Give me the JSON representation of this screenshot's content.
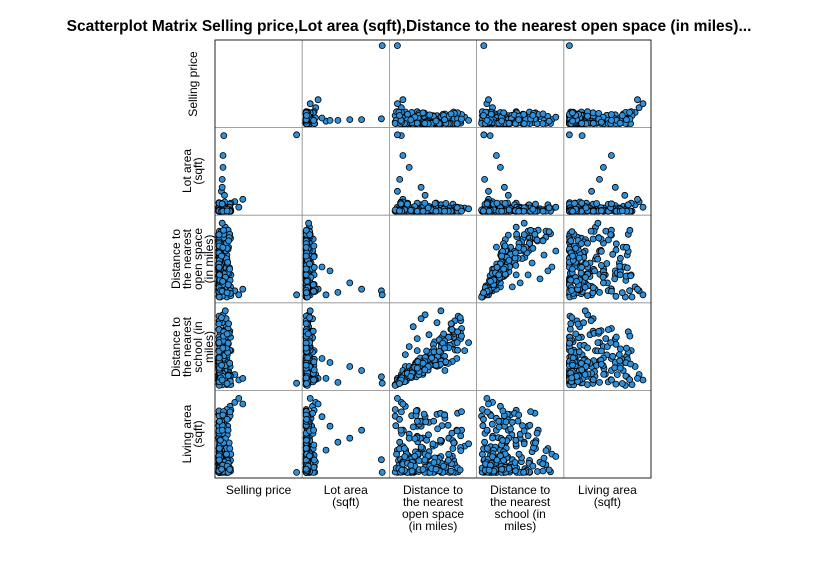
{
  "title": "Scatterplot Matrix Selling price,Lot area (sqft),Distance to the nearest open space (in miles)...",
  "colors": {
    "point_fill": "#2f8fd8",
    "point_stroke": "#000000",
    "axis_line": "#000000",
    "cell_border": "#999999"
  },
  "chart_data": {
    "type": "scatter",
    "subtype": "scatterplot-matrix",
    "variables": [
      {
        "name": "Selling price",
        "label_lines": [
          "Selling price"
        ]
      },
      {
        "name": "Lot area (sqft)",
        "label_lines": [
          "Lot area",
          "(sqft)"
        ]
      },
      {
        "name": "Distance to the nearest open space (in miles)",
        "label_lines": [
          "Distance to",
          "the nearest",
          "open space",
          "(in miles)"
        ]
      },
      {
        "name": "Distance to the nearest school (in miles)",
        "label_lines": [
          "Distance to",
          "the nearest",
          "school (in",
          "miles)"
        ]
      },
      {
        "name": "Living area (sqft)",
        "label_lines": [
          "Living area",
          "(sqft)"
        ]
      }
    ],
    "normalized_ranges_note": "",
    "points": [
      [
        0.02,
        0.05
      ],
      [
        0.04,
        0.08
      ],
      [
        0.05,
        0.03
      ],
      [
        0.06,
        0.12
      ],
      [
        0.03,
        0.15
      ],
      [
        0.07,
        0.06
      ],
      [
        0.08,
        0.1
      ],
      [
        0.05,
        0.18
      ],
      [
        0.04,
        0.22
      ],
      [
        0.06,
        0.25
      ],
      [
        0.03,
        0.3
      ],
      [
        0.05,
        0.35
      ],
      [
        0.07,
        0.28
      ],
      [
        0.08,
        0.4
      ],
      [
        0.04,
        0.45
      ],
      [
        0.06,
        0.5
      ],
      [
        0.05,
        0.55
      ],
      [
        0.03,
        0.6
      ],
      [
        0.07,
        0.65
      ],
      [
        0.06,
        0.7
      ],
      [
        0.04,
        0.75
      ],
      [
        0.05,
        0.8
      ],
      [
        0.03,
        0.85
      ],
      [
        0.06,
        0.9
      ],
      [
        0.05,
        0.95
      ],
      [
        0.04,
        0.98
      ],
      [
        0.09,
        0.15
      ],
      [
        0.1,
        0.2
      ],
      [
        0.12,
        0.08
      ],
      [
        0.11,
        0.3
      ],
      [
        0.13,
        0.12
      ],
      [
        0.15,
        0.05
      ],
      [
        0.14,
        0.18
      ],
      [
        0.16,
        0.1
      ],
      [
        0.18,
        0.06
      ],
      [
        0.2,
        0.04
      ],
      [
        0.22,
        0.08
      ],
      [
        0.25,
        0.03
      ],
      [
        0.28,
        0.05
      ],
      [
        0.3,
        0.02
      ],
      [
        0.09,
        0.45
      ],
      [
        0.1,
        0.55
      ],
      [
        0.08,
        0.62
      ],
      [
        0.09,
        0.72
      ],
      [
        0.07,
        0.82
      ],
      [
        0.11,
        0.4
      ],
      [
        0.12,
        0.35
      ],
      [
        0.1,
        0.65
      ],
      [
        0.08,
        0.88
      ],
      [
        0.09,
        0.92
      ],
      [
        0.35,
        0.04
      ],
      [
        0.4,
        0.03
      ],
      [
        0.45,
        0.05
      ],
      [
        0.5,
        0.02
      ],
      [
        0.55,
        0.04
      ],
      [
        0.6,
        0.03
      ],
      [
        0.65,
        0.05
      ],
      [
        0.7,
        0.02
      ],
      [
        0.75,
        0.03
      ],
      [
        0.8,
        0.02
      ],
      [
        0.06,
        0.42
      ],
      [
        0.07,
        0.48
      ],
      [
        0.05,
        0.52
      ],
      [
        0.06,
        0.58
      ],
      [
        0.04,
        0.62
      ],
      [
        0.05,
        0.68
      ],
      [
        0.07,
        0.72
      ],
      [
        0.03,
        0.78
      ],
      [
        0.06,
        0.84
      ],
      [
        0.04,
        0.88
      ],
      [
        0.98,
        0.96
      ]
    ],
    "pairs_seed": [
      [
        0.05,
        0.06,
        0.1,
        0.12,
        0.1
      ],
      [
        0.04,
        0.02,
        0.2,
        0.15,
        0.22
      ],
      [
        0.06,
        0.03,
        0.35,
        0.25,
        0.3
      ],
      [
        0.08,
        0.04,
        0.15,
        0.4,
        0.18
      ],
      [
        0.1,
        0.05,
        0.5,
        0.3,
        0.35
      ],
      [
        0.03,
        0.02,
        0.6,
        0.55,
        0.4
      ],
      [
        0.07,
        0.06,
        0.45,
        0.65,
        0.28
      ],
      [
        0.05,
        0.04,
        0.7,
        0.5,
        0.45
      ],
      [
        0.09,
        0.03,
        0.25,
        0.75,
        0.15
      ],
      [
        0.06,
        0.05,
        0.8,
        0.35,
        0.55
      ],
      [
        0.04,
        0.02,
        0.55,
        0.8,
        0.2
      ],
      [
        0.11,
        0.07,
        0.3,
        0.6,
        0.6
      ],
      [
        0.08,
        0.04,
        0.9,
        0.45,
        0.35
      ],
      [
        0.05,
        0.03,
        0.4,
        0.9,
        0.25
      ],
      [
        0.12,
        0.06,
        0.65,
        0.2,
        0.7
      ],
      [
        0.07,
        0.05,
        0.2,
        0.5,
        0.5
      ],
      [
        0.06,
        0.03,
        0.75,
        0.7,
        0.42
      ],
      [
        0.09,
        0.08,
        0.35,
        0.85,
        0.32
      ],
      [
        0.05,
        0.04,
        0.85,
        0.6,
        0.48
      ],
      [
        0.1,
        0.06,
        0.55,
        0.35,
        0.75
      ],
      [
        0.14,
        0.08,
        0.15,
        0.25,
        0.85
      ],
      [
        0.04,
        0.03,
        0.95,
        0.55,
        0.38
      ],
      [
        0.08,
        0.05,
        0.6,
        0.95,
        0.22
      ],
      [
        0.06,
        0.04,
        0.45,
        0.4,
        0.65
      ],
      [
        0.2,
        0.12,
        0.1,
        0.15,
        0.9
      ],
      [
        0.15,
        0.1,
        0.3,
        0.45,
        0.8
      ],
      [
        0.03,
        0.25,
        0.05,
        0.1,
        0.3
      ],
      [
        0.04,
        0.4,
        0.08,
        0.05,
        0.4
      ],
      [
        0.05,
        0.7,
        0.12,
        0.2,
        0.55
      ],
      [
        0.06,
        0.95,
        0.1,
        0.12,
        0.18
      ],
      [
        0.04,
        0.3,
        0.35,
        0.3,
        0.6
      ],
      [
        0.25,
        0.05,
        0.05,
        0.08,
        0.95
      ],
      [
        0.3,
        0.15,
        0.12,
        0.1,
        0.88
      ],
      [
        0.07,
        0.2,
        0.4,
        0.35,
        0.72
      ],
      [
        0.98,
        0.96,
        0.05,
        0.04,
        0.02
      ],
      [
        0.05,
        0.55,
        0.2,
        0.25,
        0.45
      ]
    ]
  }
}
